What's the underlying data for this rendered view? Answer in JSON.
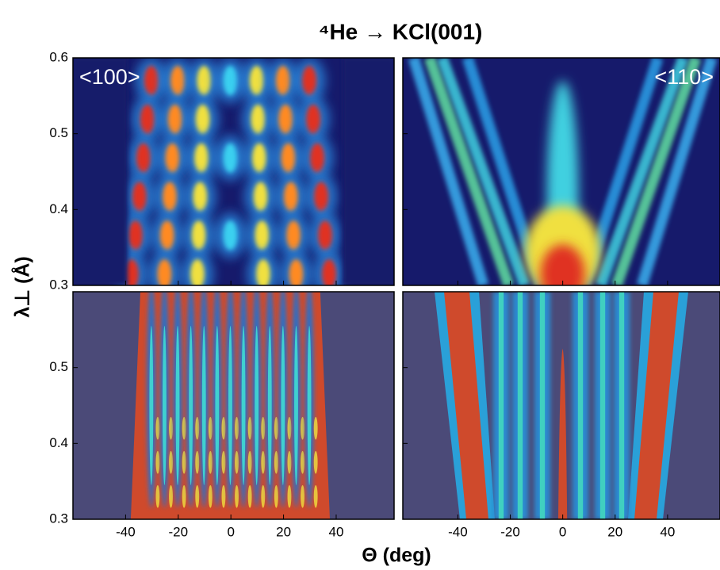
{
  "chart_data": {
    "type": "heatmap",
    "title": "⁴He → KCl(001)",
    "xlabel": "Θ (deg)",
    "ylabel": "λ⊥ (Å)",
    "panels": [
      {
        "label": "<100>",
        "xlim": [
          -60,
          62
        ],
        "ylim": [
          0.3,
          0.6
        ],
        "yticks": [
          0.3,
          0.4,
          0.5,
          0.6
        ]
      },
      {
        "label": "<110>",
        "xlim": [
          -61,
          60
        ],
        "ylim": [
          0.3,
          0.6
        ]
      },
      {
        "xlim": [
          -60,
          62
        ],
        "ylim": [
          0.3,
          0.6
        ],
        "xticks": [
          -40,
          -20,
          0,
          20,
          40
        ],
        "yticks": [
          0.3,
          0.4,
          0.5
        ]
      },
      {
        "xlim": [
          -61,
          60
        ],
        "ylim": [
          0.3,
          0.6
        ],
        "xticks": [
          -40,
          -20,
          0,
          20,
          40
        ]
      }
    ]
  }
}
